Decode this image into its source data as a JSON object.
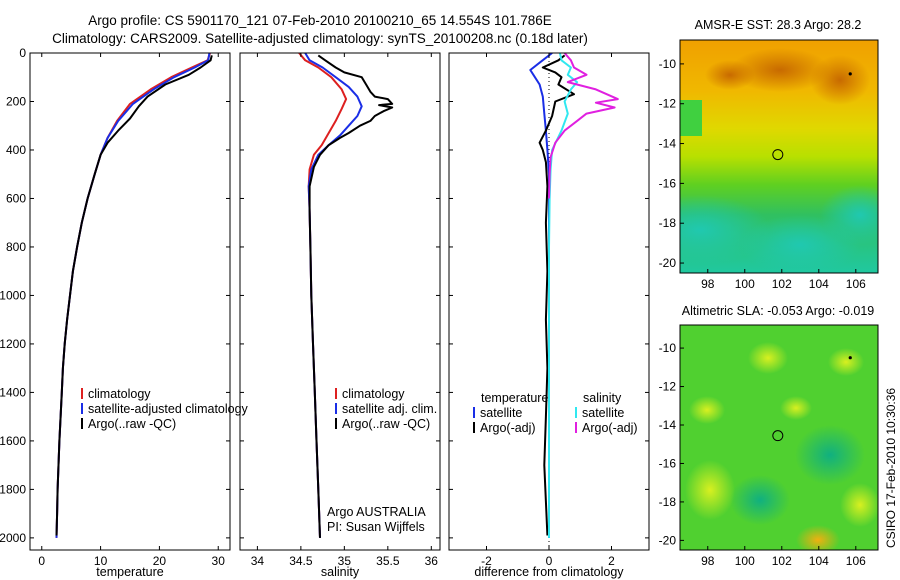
{
  "header": {
    "title_line1": "Argo profile: CS 5901170_121 07-Feb-2010 20100210_65 14.554S 101.786E",
    "title_line2": "Climatology: CARS2009. Satellite-adjusted climatology: synTS_20100208.nc (0.18d later)"
  },
  "colors": {
    "climatology": "#dd2020",
    "satellite": "#1a2ee6",
    "argo": "#000000",
    "argo_adj_salinity": "#e020e0",
    "satellite_salinity": "#30e8f0"
  },
  "chart_data": [
    {
      "type": "line",
      "id": "temperature",
      "xlabel": "temperature",
      "xlim": [
        -2,
        32
      ],
      "ylim": [
        2050,
        0
      ],
      "xticks": [
        0,
        10,
        20,
        30
      ],
      "yticks": [
        0,
        200,
        400,
        600,
        800,
        1000,
        1200,
        1400,
        1600,
        1800,
        2000
      ],
      "legend": {
        "placement": "lower-middle",
        "entries": [
          "climatology",
          "satellite-adjusted climatology",
          "Argo(..raw -QC)"
        ]
      },
      "series": [
        {
          "name": "climatology",
          "color": "#dd2020",
          "points": [
            [
              28.6,
              0
            ],
            [
              28.2,
              30
            ],
            [
              25.5,
              60
            ],
            [
              22,
              100
            ],
            [
              18.5,
              150
            ],
            [
              15,
              210
            ],
            [
              12.8,
              280
            ],
            [
              11.2,
              350
            ],
            [
              10,
              420
            ],
            [
              9,
              500
            ],
            [
              7.8,
              600
            ],
            [
              6.8,
              700
            ],
            [
              6,
              800
            ],
            [
              5.3,
              900
            ],
            [
              4.8,
              1000
            ],
            [
              4.3,
              1100
            ],
            [
              3.9,
              1200
            ],
            [
              3.6,
              1300
            ],
            [
              3.4,
              1400
            ],
            [
              3.2,
              1500
            ],
            [
              3,
              1600
            ],
            [
              2.85,
              1700
            ],
            [
              2.7,
              1800
            ],
            [
              2.6,
              1900
            ],
            [
              2.5,
              2000
            ]
          ]
        },
        {
          "name": "satellite-adjusted climatology",
          "color": "#1a2ee6",
          "points": [
            [
              28.5,
              0
            ],
            [
              28.3,
              30
            ],
            [
              26,
              60
            ],
            [
              22.5,
              100
            ],
            [
              19,
              150
            ],
            [
              15.5,
              210
            ],
            [
              13,
              280
            ],
            [
              11.2,
              350
            ],
            [
              10,
              420
            ],
            [
              9,
              500
            ],
            [
              7.8,
              600
            ],
            [
              6.8,
              700
            ],
            [
              6,
              800
            ],
            [
              5.3,
              900
            ],
            [
              4.8,
              1000
            ],
            [
              4.3,
              1100
            ],
            [
              3.9,
              1200
            ],
            [
              3.6,
              1300
            ],
            [
              3.4,
              1400
            ],
            [
              3.2,
              1500
            ],
            [
              3,
              1600
            ],
            [
              2.85,
              1700
            ],
            [
              2.7,
              1800
            ],
            [
              2.6,
              1900
            ],
            [
              2.5,
              2000
            ]
          ]
        },
        {
          "name": "Argo(..raw -QC)",
          "color": "#000000",
          "points": [
            [
              28.9,
              10
            ],
            [
              28.7,
              30
            ],
            [
              27,
              60
            ],
            [
              25,
              90
            ],
            [
              21,
              130
            ],
            [
              18,
              180
            ],
            [
              16.5,
              220
            ],
            [
              15,
              270
            ],
            [
              13,
              320
            ],
            [
              11.2,
              370
            ],
            [
              10,
              420
            ],
            [
              9,
              500
            ],
            [
              7.8,
              600
            ],
            [
              6.8,
              700
            ],
            [
              6,
              800
            ],
            [
              5.3,
              900
            ],
            [
              4.8,
              1000
            ],
            [
              4.3,
              1100
            ],
            [
              3.9,
              1200
            ],
            [
              3.6,
              1300
            ],
            [
              3.4,
              1400
            ],
            [
              3.2,
              1500
            ],
            [
              3,
              1600
            ],
            [
              2.85,
              1700
            ],
            [
              2.7,
              1800
            ],
            [
              2.6,
              1900
            ],
            [
              2.5,
              1990
            ]
          ]
        }
      ]
    },
    {
      "type": "line",
      "id": "salinity",
      "xlabel": "salinity",
      "xlim": [
        33.8,
        36.1
      ],
      "ylim": [
        2050,
        0
      ],
      "xticks": [
        34,
        34.5,
        35,
        35.5,
        36
      ],
      "legend": {
        "placement": "lower-middle",
        "entries": [
          "climatology",
          "satellite adj. clim.",
          "Argo(..raw -QC)"
        ]
      },
      "annotations": [
        "Argo AUSTRALIA",
        "PI: Susan Wijffels"
      ],
      "series": [
        {
          "name": "climatology",
          "color": "#dd2020",
          "points": [
            [
              34.48,
              0
            ],
            [
              34.55,
              30
            ],
            [
              34.7,
              60
            ],
            [
              34.85,
              100
            ],
            [
              34.97,
              150
            ],
            [
              35.02,
              190
            ],
            [
              34.97,
              230
            ],
            [
              34.9,
              280
            ],
            [
              34.82,
              330
            ],
            [
              34.74,
              380
            ],
            [
              34.65,
              420
            ],
            [
              34.6,
              480
            ],
            [
              34.59,
              550
            ],
            [
              34.6,
              650
            ],
            [
              34.61,
              800
            ],
            [
              34.62,
              1000
            ],
            [
              34.64,
              1200
            ],
            [
              34.66,
              1400
            ],
            [
              34.68,
              1600
            ],
            [
              34.7,
              1800
            ],
            [
              34.72,
              2000
            ]
          ]
        },
        {
          "name": "satellite adj. clim.",
          "color": "#1a2ee6",
          "points": [
            [
              34.55,
              0
            ],
            [
              34.6,
              30
            ],
            [
              34.75,
              60
            ],
            [
              34.9,
              100
            ],
            [
              35.05,
              140
            ],
            [
              35.15,
              180
            ],
            [
              35.2,
              220
            ],
            [
              35.15,
              260
            ],
            [
              35.05,
              300
            ],
            [
              34.95,
              340
            ],
            [
              34.82,
              380
            ],
            [
              34.7,
              420
            ],
            [
              34.62,
              480
            ],
            [
              34.59,
              550
            ],
            [
              34.6,
              650
            ],
            [
              34.61,
              800
            ],
            [
              34.62,
              1000
            ],
            [
              34.64,
              1200
            ],
            [
              34.66,
              1400
            ],
            [
              34.68,
              1600
            ],
            [
              34.7,
              1800
            ],
            [
              34.72,
              2000
            ]
          ]
        },
        {
          "name": "Argo(..raw -QC)",
          "color": "#000000",
          "points": [
            [
              34.7,
              10
            ],
            [
              34.78,
              30
            ],
            [
              34.9,
              60
            ],
            [
              35,
              80
            ],
            [
              35.2,
              100
            ],
            [
              35.25,
              130
            ],
            [
              35.3,
              160
            ],
            [
              35.35,
              180
            ],
            [
              35.5,
              190
            ],
            [
              35.55,
              210
            ],
            [
              35.4,
              215
            ],
            [
              35.55,
              225
            ],
            [
              35.45,
              240
            ],
            [
              35.35,
              260
            ],
            [
              35.3,
              280
            ],
            [
              35.18,
              300
            ],
            [
              35.05,
              330
            ],
            [
              34.95,
              350
            ],
            [
              34.82,
              380
            ],
            [
              34.72,
              420
            ],
            [
              34.65,
              470
            ],
            [
              34.6,
              550
            ],
            [
              34.6,
              650
            ],
            [
              34.61,
              800
            ],
            [
              34.62,
              1000
            ],
            [
              34.64,
              1200
            ],
            [
              34.66,
              1400
            ],
            [
              34.68,
              1600
            ],
            [
              34.7,
              1800
            ],
            [
              34.72,
              2000
            ]
          ]
        }
      ]
    },
    {
      "type": "line",
      "id": "difference",
      "xlabel": "difference from climatology",
      "xlim": [
        -3.2,
        3.2
      ],
      "ylim": [
        2050,
        0
      ],
      "xticks": [
        -2,
        0,
        2
      ],
      "legend": {
        "placement": "lower",
        "temperature_header": "temperature",
        "salinity_header": "salinity",
        "entries": [
          "satellite",
          "Argo(-adj)",
          "satellite",
          "Argo(-adj)"
        ]
      },
      "series": [
        {
          "name": "temperature satellite",
          "color": "#1a2ee6",
          "points": [
            [
              0.1,
              0
            ],
            [
              -0.3,
              40
            ],
            [
              -0.6,
              70
            ],
            [
              -0.5,
              90
            ],
            [
              -0.3,
              130
            ],
            [
              -0.2,
              180
            ],
            [
              -0.15,
              250
            ],
            [
              -0.1,
              320
            ],
            [
              -0.05,
              400
            ],
            [
              0,
              500
            ],
            [
              0,
              700
            ],
            [
              0,
              900
            ],
            [
              0,
              1100
            ],
            [
              0,
              1300
            ],
            [
              0,
              1500
            ],
            [
              0,
              1700
            ],
            [
              0,
              1900
            ],
            [
              0,
              2000
            ]
          ]
        },
        {
          "name": "temperature Argo(-adj)",
          "color": "#000000",
          "points": [
            [
              0.5,
              10
            ],
            [
              0.3,
              30
            ],
            [
              -0.2,
              60
            ],
            [
              0.2,
              80
            ],
            [
              0.4,
              100
            ],
            [
              0.3,
              130
            ],
            [
              0.8,
              170
            ],
            [
              0.2,
              200
            ],
            [
              0.1,
              260
            ],
            [
              -0.1,
              320
            ],
            [
              -0.3,
              370
            ],
            [
              -0.2,
              400
            ],
            [
              -0.1,
              450
            ],
            [
              -0.05,
              550
            ],
            [
              -0.1,
              700
            ],
            [
              -0.05,
              900
            ],
            [
              -0.1,
              1100
            ],
            [
              -0.05,
              1300
            ],
            [
              -0.1,
              1500
            ],
            [
              -0.15,
              1700
            ],
            [
              -0.1,
              1850
            ],
            [
              -0.05,
              1990
            ]
          ]
        },
        {
          "name": "salinity satellite",
          "color": "#30e8f0",
          "points": [
            [
              0.35,
              0
            ],
            [
              0.4,
              30
            ],
            [
              0.7,
              60
            ],
            [
              0.6,
              90
            ],
            [
              0.9,
              120
            ],
            [
              0.7,
              150
            ],
            [
              0.5,
              200
            ],
            [
              0.6,
              250
            ],
            [
              0.4,
              320
            ],
            [
              0.1,
              400
            ],
            [
              0.05,
              480
            ],
            [
              0.02,
              600
            ],
            [
              0,
              800
            ],
            [
              0,
              1000
            ],
            [
              0,
              1200
            ],
            [
              0,
              1400
            ],
            [
              0,
              1600
            ],
            [
              0,
              1800
            ],
            [
              0,
              2000
            ]
          ]
        },
        {
          "name": "salinity Argo(-adj)",
          "color": "#e020e0",
          "points": [
            [
              0.5,
              0
            ],
            [
              0.7,
              30
            ],
            [
              0.8,
              60
            ],
            [
              1.2,
              90
            ],
            [
              0.6,
              120
            ],
            [
              1.5,
              150
            ],
            [
              2.2,
              190
            ],
            [
              1.5,
              205
            ],
            [
              2.1,
              225
            ],
            [
              1.2,
              250
            ],
            [
              0.9,
              280
            ],
            [
              0.5,
              320
            ],
            [
              0.2,
              370
            ],
            [
              0.05,
              430
            ],
            [
              0.02,
              500
            ],
            [
              0,
              600
            ]
          ]
        }
      ]
    }
  ],
  "maps": [
    {
      "id": "sst",
      "title": "AMSR-E SST: 28.3 Argo: 28.2",
      "xlim": [
        96.5,
        107.2
      ],
      "ylim": [
        -20.5,
        -8.8
      ],
      "xticks": [
        98,
        100,
        102,
        104,
        106
      ],
      "yticks": [
        -10,
        -12,
        -14,
        -16,
        -18,
        -20
      ],
      "marker": [
        101.786,
        -14.554
      ]
    },
    {
      "id": "sla",
      "title": "Altimetric SLA: -0.053 Argo: -0.019",
      "xlim": [
        96.5,
        107.2
      ],
      "ylim": [
        -20.5,
        -8.8
      ],
      "xticks": [
        98,
        100,
        102,
        104,
        106
      ],
      "yticks": [
        -10,
        -12,
        -14,
        -16,
        -18,
        -20
      ],
      "marker": [
        101.786,
        -14.554
      ]
    }
  ],
  "credit": "CSIRO 17-Feb-2010 10:30:36"
}
